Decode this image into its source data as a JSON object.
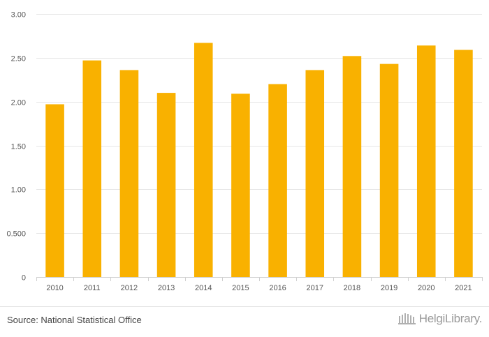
{
  "chart_data": {
    "type": "bar",
    "categories": [
      "2010",
      "2011",
      "2012",
      "2013",
      "2014",
      "2015",
      "2016",
      "2017",
      "2018",
      "2019",
      "2020",
      "2021"
    ],
    "values": [
      1.97,
      2.47,
      2.36,
      2.1,
      2.67,
      2.09,
      2.2,
      2.36,
      2.52,
      2.43,
      2.64,
      2.59
    ],
    "title": "",
    "xlabel": "",
    "ylabel": "",
    "ylim": [
      0,
      3
    ],
    "yticks": [
      0,
      0.5,
      1,
      1.5,
      2,
      2.5,
      3
    ],
    "ytick_labels": [
      "0",
      "0.500",
      "1.00",
      "1.50",
      "2.00",
      "2.50",
      "3.00"
    ],
    "grid": true,
    "bar_color": "#F9B100"
  },
  "footer": {
    "source": "Source: National Statistical Office",
    "brand": "HelgiLibrary."
  },
  "colors": {
    "bar": "#F9B100",
    "grid": "#E6E6E6",
    "brand": "#9A9A9A"
  }
}
